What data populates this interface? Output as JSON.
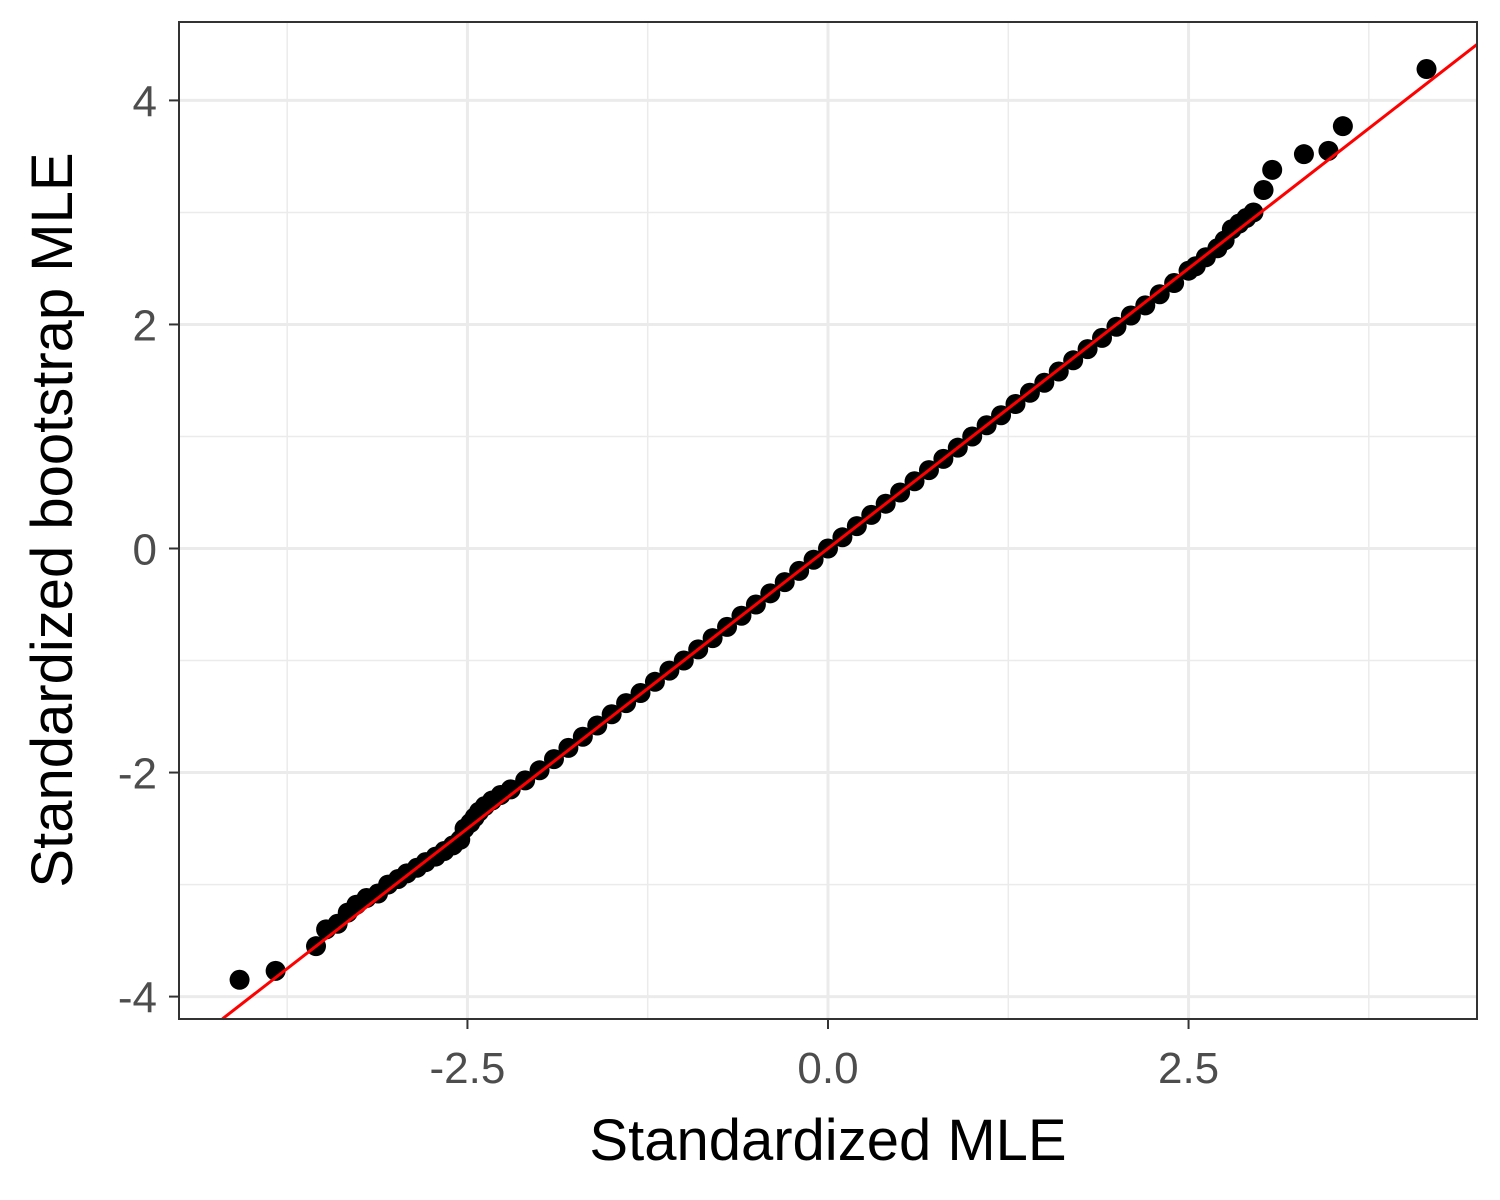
{
  "chart_data": {
    "type": "scatter",
    "title": "",
    "xlabel": "Standardized MLE",
    "ylabel": "Standardized bootstrap MLE",
    "xlim": [
      -4.5,
      4.5
    ],
    "ylim": [
      -4.2,
      4.7
    ],
    "x_ticks": [
      -2.5,
      0.0,
      2.5
    ],
    "x_tick_labels": [
      "-2.5",
      "0.0",
      "2.5"
    ],
    "x_minor_ticks": [
      -3.75,
      -1.25,
      1.25,
      3.75
    ],
    "y_ticks": [
      -4,
      -2,
      0,
      2,
      4
    ],
    "y_tick_labels": [
      "-4",
      "-2",
      "0",
      "2",
      "4"
    ],
    "y_minor_ticks": [
      -3,
      -1,
      1,
      3
    ],
    "grid": true,
    "legend": "none",
    "point_color": "#000000",
    "reference_line": {
      "slope": 1,
      "intercept": 0,
      "color": "#ff0000"
    },
    "series": [
      {
        "x": [
          -4.08,
          -3.83,
          -3.55,
          -3.48,
          -3.4,
          -3.33,
          -3.27,
          -3.2,
          -3.12,
          -3.05,
          -2.98,
          -2.92,
          -2.85,
          -2.79,
          -2.72,
          -2.66,
          -2.6,
          -2.55,
          -2.52,
          -2.48,
          -2.45,
          -2.42,
          -2.38,
          -2.33,
          -2.27,
          -2.2,
          -2.1,
          -2.0,
          -1.9,
          -1.8,
          -1.7,
          -1.6,
          -1.5,
          -1.4,
          -1.3,
          -1.2,
          -1.1,
          -1.0,
          -0.9,
          -0.8,
          -0.7,
          -0.6,
          -0.5,
          -0.4,
          -0.3,
          -0.2,
          -0.1,
          0.0,
          0.1,
          0.2,
          0.3,
          0.4,
          0.5,
          0.6,
          0.7,
          0.8,
          0.9,
          1.0,
          1.1,
          1.2,
          1.3,
          1.4,
          1.5,
          1.6,
          1.7,
          1.8,
          1.9,
          2.0,
          2.1,
          2.2,
          2.3,
          2.4,
          2.5,
          2.55,
          2.62,
          2.7,
          2.75,
          2.8,
          2.85,
          2.9,
          2.95,
          3.02,
          3.08,
          3.3,
          3.47,
          3.57,
          4.15
        ],
        "y": [
          -3.85,
          -3.77,
          -3.55,
          -3.4,
          -3.35,
          -3.25,
          -3.18,
          -3.12,
          -3.08,
          -3.0,
          -2.95,
          -2.9,
          -2.85,
          -2.8,
          -2.75,
          -2.7,
          -2.65,
          -2.6,
          -2.5,
          -2.45,
          -2.4,
          -2.35,
          -2.3,
          -2.25,
          -2.2,
          -2.15,
          -2.07,
          -1.98,
          -1.88,
          -1.78,
          -1.68,
          -1.58,
          -1.48,
          -1.38,
          -1.29,
          -1.19,
          -1.09,
          -1.0,
          -0.9,
          -0.8,
          -0.7,
          -0.6,
          -0.5,
          -0.4,
          -0.3,
          -0.2,
          -0.1,
          0.0,
          0.1,
          0.2,
          0.3,
          0.4,
          0.5,
          0.6,
          0.7,
          0.8,
          0.9,
          1.0,
          1.1,
          1.19,
          1.29,
          1.39,
          1.48,
          1.58,
          1.68,
          1.78,
          1.88,
          1.98,
          2.08,
          2.17,
          2.27,
          2.37,
          2.48,
          2.52,
          2.6,
          2.68,
          2.75,
          2.85,
          2.9,
          2.95,
          3.0,
          3.2,
          3.38,
          3.52,
          3.55,
          3.77,
          4.28
        ]
      }
    ]
  }
}
